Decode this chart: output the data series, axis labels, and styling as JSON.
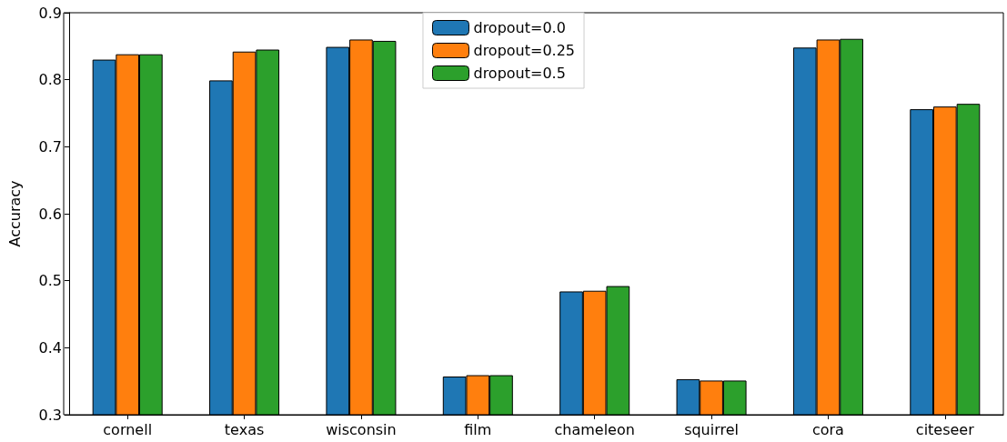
{
  "chart_data": {
    "type": "bar",
    "ylabel": "Accuracy",
    "categories": [
      "cornell",
      "texas",
      "wisconsin",
      "film",
      "chameleon",
      "squirrel",
      "cora",
      "citeseer"
    ],
    "series": [
      {
        "name": "dropout=0.0",
        "color": "#1f77b4",
        "values": [
          0.83,
          0.799,
          0.849,
          0.357,
          0.484,
          0.353,
          0.848,
          0.756
        ]
      },
      {
        "name": "dropout=0.25",
        "color": "#ff7f0e",
        "values": [
          0.838,
          0.842,
          0.86,
          0.359,
          0.485,
          0.351,
          0.86,
          0.76
        ]
      },
      {
        "name": "dropout=0.5",
        "color": "#2ca02c",
        "values": [
          0.838,
          0.845,
          0.858,
          0.359,
          0.492,
          0.351,
          0.861,
          0.764
        ]
      }
    ],
    "ylim": [
      0.3,
      0.9
    ],
    "yticks": [
      0.3,
      0.4,
      0.5,
      0.6,
      0.7,
      0.8,
      0.9
    ],
    "grid": false,
    "legend": "top"
  }
}
